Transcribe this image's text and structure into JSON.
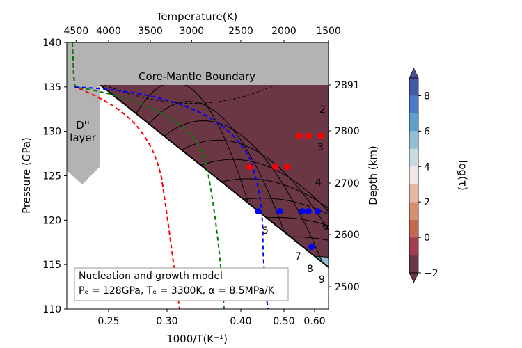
{
  "chart_data": {
    "type": "contour",
    "xlabel": "1000/T(K⁻¹)",
    "x_ticks": [
      "0.25",
      "0.30",
      "0.40",
      "0.50",
      "0.60"
    ],
    "top_xlabel": "Temperature(K)",
    "top_ticks": [
      "4500",
      "4000",
      "3500",
      "3000",
      "2500",
      "2000",
      "1500"
    ],
    "ylabel": "Pressure (GPa)",
    "y_ticks": [
      "140",
      "135",
      "130",
      "125",
      "120",
      "115",
      "110"
    ],
    "ylim": [
      110,
      140
    ],
    "right_ylabel": "Depth (km)",
    "right_ticks": [
      "2891",
      "2800",
      "2700",
      "2600",
      "2500"
    ],
    "colorbar": {
      "label": "log(τ)",
      "ticks": [
        "8",
        "6",
        "4",
        "2",
        "0",
        "−2"
      ],
      "levels": [
        -2,
        -1,
        0,
        1,
        2,
        3,
        4,
        5,
        6,
        7,
        8,
        9
      ],
      "colors": [
        "#6b3745",
        "#a33c4d",
        "#c4684f",
        "#d68f70",
        "#e6b7a4",
        "#f1e6e4",
        "#c8d9e2",
        "#94bdd3",
        "#5f9fcb",
        "#4c79c8",
        "#4358a8"
      ]
    },
    "contour_labels": [
      "2",
      "3",
      "4",
      "5",
      "6",
      "7",
      "8",
      "9"
    ],
    "regions": {
      "cmb": "Core-Mantle Boundary",
      "dlayer_line1": "D''",
      "dlayer_line2": "layer"
    },
    "annotation": {
      "line1": "Nucleation and growth model",
      "line2": "Pₑ = 128GPa, Tₑ = 3300K, α = 8.5MPa/K"
    },
    "series": [
      {
        "color": "#ff0000",
        "marker": "circle",
        "points": [
          [
            0.42,
            126
          ],
          [
            0.48,
            126
          ],
          [
            0.51,
            126
          ],
          [
            0.55,
            129.5
          ],
          [
            0.58,
            129.5
          ],
          [
            0.62,
            129.5
          ]
        ]
      },
      {
        "color": "#0000ff",
        "marker": "circle",
        "points": [
          [
            0.44,
            121
          ],
          [
            0.49,
            121
          ],
          [
            0.56,
            121
          ],
          [
            0.58,
            121
          ],
          [
            0.61,
            121
          ],
          [
            0.59,
            117
          ]
        ]
      }
    ],
    "dashed_curves": [
      "#ff0000",
      "#008000",
      "#0000ff"
    ]
  }
}
